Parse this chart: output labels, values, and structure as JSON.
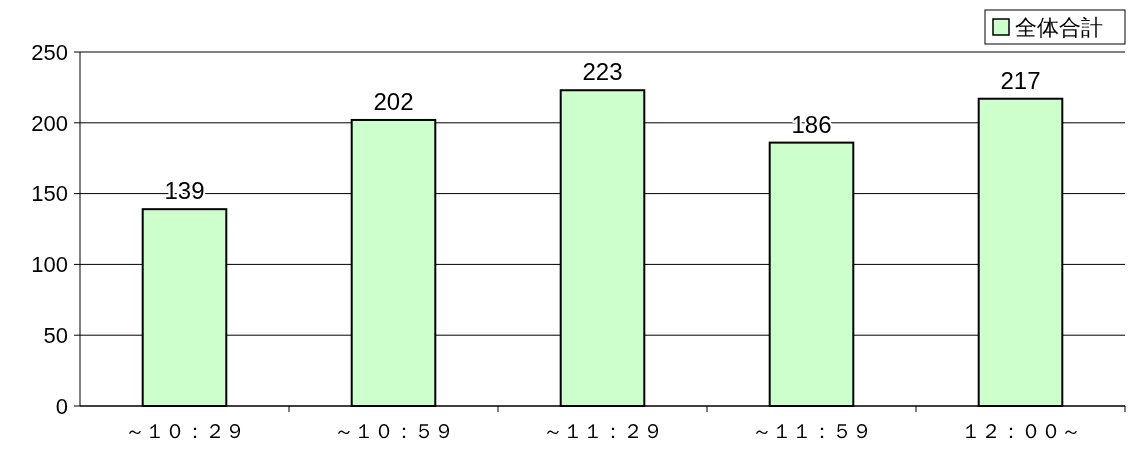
{
  "chart_data": {
    "type": "bar",
    "categories": [
      "～１０：２９",
      "～１０：５９",
      "～１１：２９",
      "～１１：５９",
      "１２：００～"
    ],
    "series": [
      {
        "name": "全体合計",
        "color": "#ccffcc",
        "values": [
          139,
          202,
          223,
          186,
          217
        ]
      }
    ],
    "ylim": [
      0,
      250
    ],
    "yticks": [
      0,
      50,
      100,
      150,
      200,
      250
    ],
    "grid": "y",
    "legend": "top right",
    "data_labels": true
  }
}
